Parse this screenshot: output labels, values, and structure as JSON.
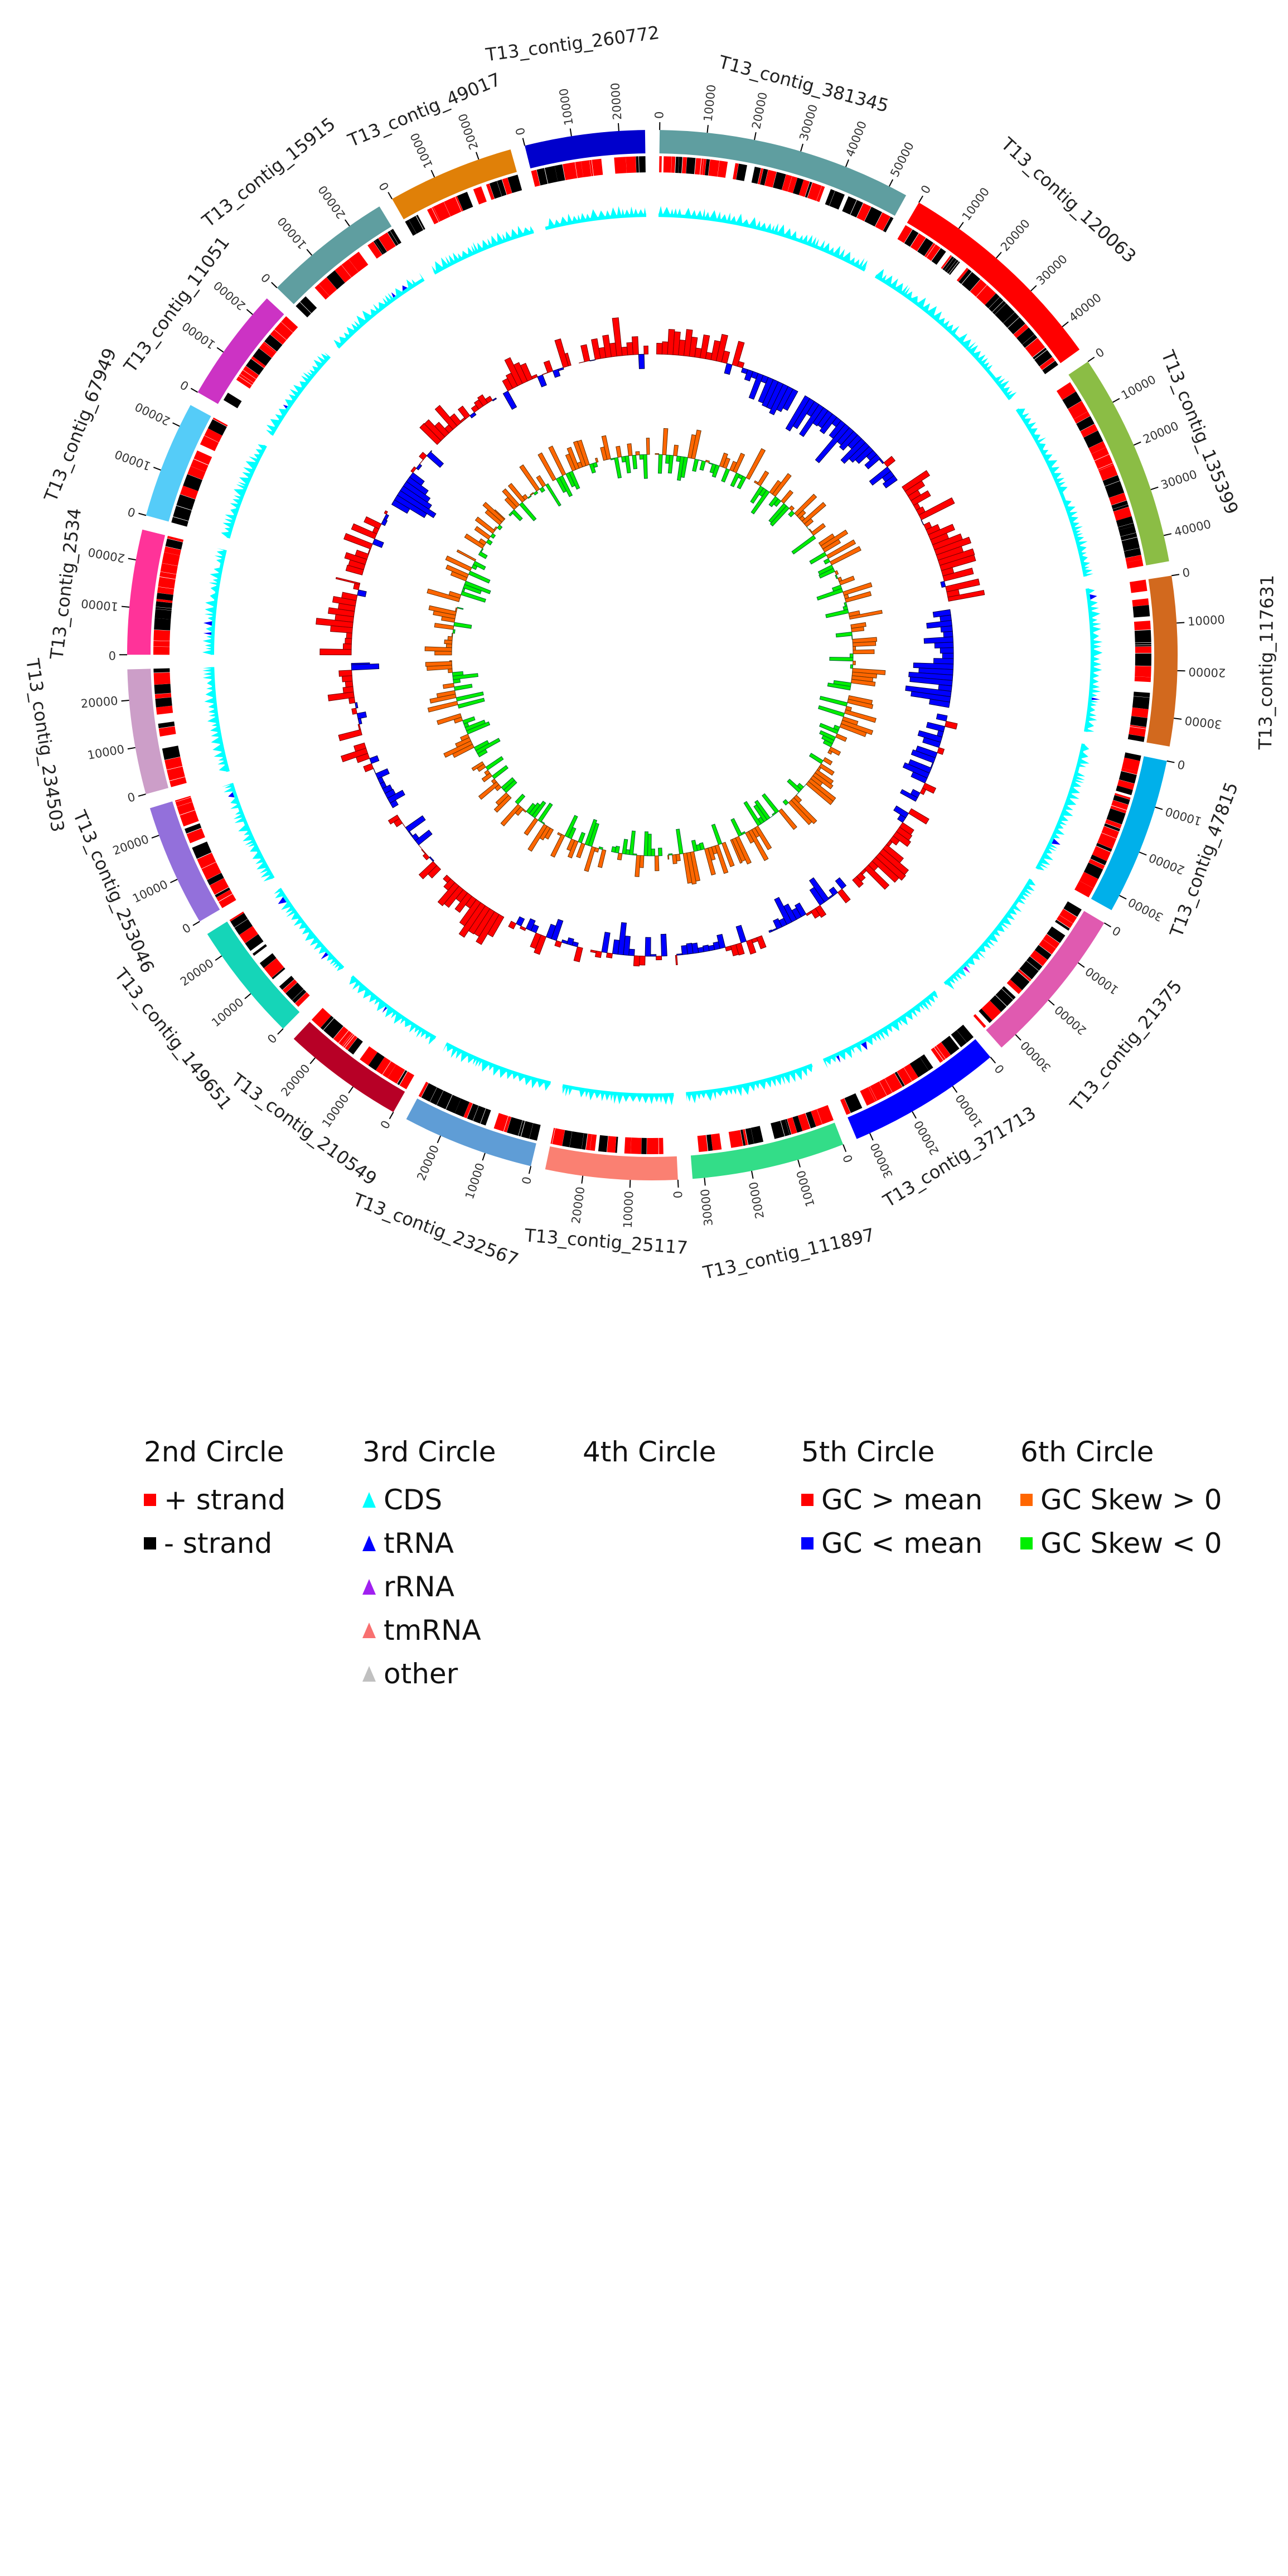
{
  "chart_data": {
    "type": "circos",
    "title": "",
    "tick_interval": 10000,
    "contigs": [
      {
        "name": "T13_contig_381345",
        "length": 54000,
        "color": "#5f9ea0"
      },
      {
        "name": "T13_contig_120063",
        "length": 46000,
        "color": "#ff0000"
      },
      {
        "name": "T13_contig_135399",
        "length": 45500,
        "color": "#8bbd45"
      },
      {
        "name": "T13_contig_117631",
        "length": 36000,
        "color": "#d2691e"
      },
      {
        "name": "T13_contig_47815",
        "length": 33500,
        "color": "#00b0ea"
      },
      {
        "name": "T13_contig_21375",
        "length": 34000,
        "color": "#e05ab0"
      },
      {
        "name": "T13_contig_371713",
        "length": 33000,
        "color": "#0000ff"
      },
      {
        "name": "T13_contig_111897",
        "length": 32500,
        "color": "#33dd88"
      },
      {
        "name": "T13_contig_25117",
        "length": 28000,
        "color": "#fa8072"
      },
      {
        "name": "T13_contig_232567",
        "length": 28000,
        "color": "#5f9dd6"
      },
      {
        "name": "T13_contig_210549",
        "length": 26000,
        "color": "#b70026"
      },
      {
        "name": "T13_contig_149651",
        "length": 25500,
        "color": "#15d5b8"
      },
      {
        "name": "T13_contig_253046",
        "length": 26000,
        "color": "#9370db"
      },
      {
        "name": "T13_contig_234503",
        "length": 26500,
        "color": "#cc9ec8"
      },
      {
        "name": "T13_contig_2534",
        "length": 26500,
        "color": "#ff3399"
      },
      {
        "name": "T13_contig_67949",
        "length": 25000,
        "color": "#55ccf8"
      },
      {
        "name": "T13_contig_11051",
        "length": 24500,
        "color": "#cc33c4"
      },
      {
        "name": "T13_contig_15915",
        "length": 27500,
        "color": "#5f9ea0"
      },
      {
        "name": "T13_contig_49017",
        "length": 27000,
        "color": "#e08008"
      },
      {
        "name": "T13_contig_260772",
        "length": 25500,
        "color": "#0000cc"
      }
    ],
    "colors": {
      "plus": "#ff0000",
      "minus": "#000000",
      "cds": "#00ffff",
      "trna": "#0000ff",
      "rrna": "#a020f0",
      "tmrna": "#f87070",
      "other": "#c0c0c0",
      "gc_high": "#ff0000",
      "gc_low": "#0000ff",
      "skew_pos": "#ff6600",
      "skew_neg": "#00ee00"
    }
  },
  "legend": {
    "circle2": {
      "title": "2nd Circle",
      "items": [
        {
          "label": "+ strand",
          "color": "#ff0000"
        },
        {
          "label": "- strand",
          "color": "#000000"
        }
      ]
    },
    "circle3": {
      "title": "3rd Circle",
      "items": [
        {
          "label": "CDS",
          "color": "#00ffff"
        },
        {
          "label": "tRNA",
          "color": "#0000ff"
        },
        {
          "label": "rRNA",
          "color": "#a020f0"
        },
        {
          "label": "tmRNA",
          "color": "#f87070"
        },
        {
          "label": "other",
          "color": "#c0c0c0"
        }
      ]
    },
    "circle4": {
      "title": "4th Circle"
    },
    "circle5": {
      "title": "5th Circle",
      "items": [
        {
          "label": "GC > mean",
          "color": "#ff0000"
        },
        {
          "label": "GC < mean",
          "color": "#0000ff"
        }
      ]
    },
    "circle6": {
      "title": "6th Circle",
      "items": [
        {
          "label": "GC Skew > 0",
          "color": "#ff6600"
        },
        {
          "label": "GC Skew < 0",
          "color": "#00ee00"
        }
      ]
    }
  }
}
